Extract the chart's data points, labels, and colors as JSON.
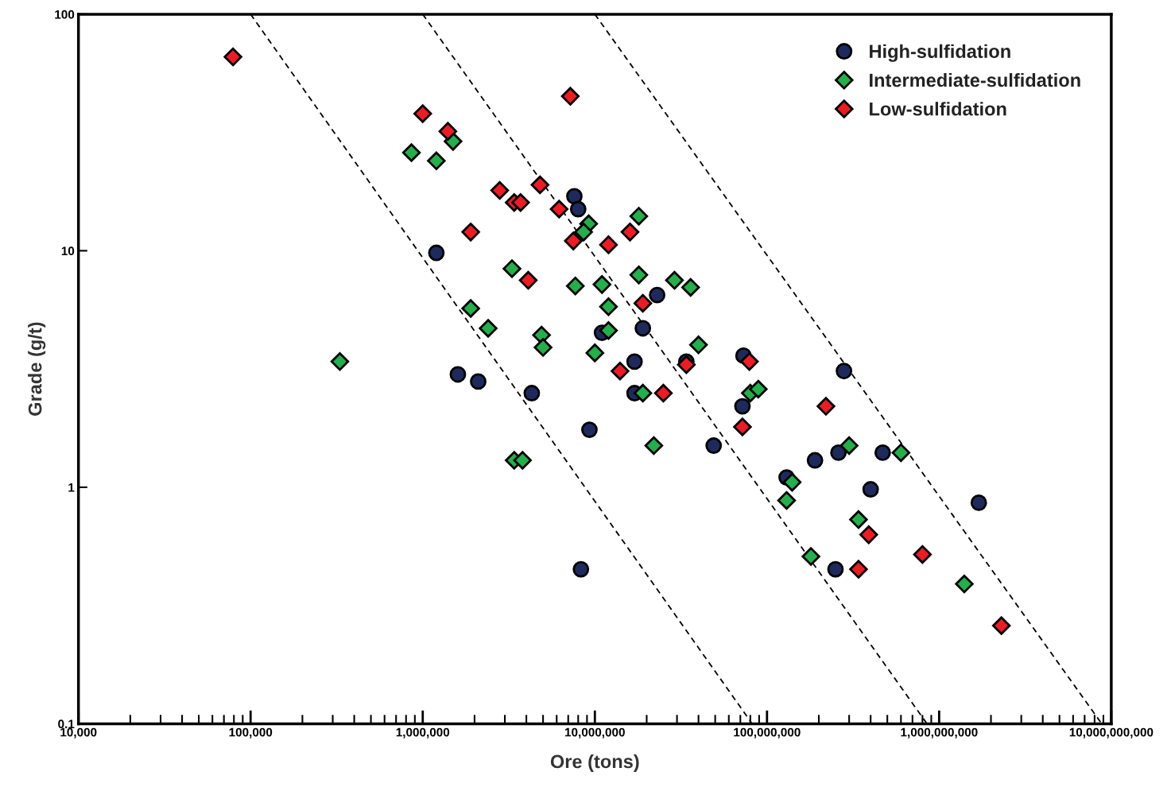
{
  "chart_data": {
    "type": "scatter",
    "xlabel": "Ore (tons)",
    "ylabel": "Grade (g/t)",
    "log": "xy",
    "grid": false,
    "legend": "top right",
    "xlim": [
      10000,
      10000000000
    ],
    "ylim": [
      0.1,
      100
    ],
    "xticks": [
      {
        "value": 10000,
        "label": "10,000"
      },
      {
        "value": 100000,
        "label": "100,000"
      },
      {
        "value": 1000000,
        "label": "1,000,000"
      },
      {
        "value": 10000000,
        "label": "10,000,000"
      },
      {
        "value": 100000000,
        "label": "100,000,000"
      },
      {
        "value": 1000000000,
        "label": "1,000,000,000"
      },
      {
        "value": 10000000000,
        "label": "10,000,000,000"
      }
    ],
    "yticks": [
      0.1,
      1,
      10,
      100
    ],
    "series": [
      {
        "type": "line",
        "color": "#000000",
        "line_style": "dashed",
        "marker": "none",
        "x": [
          100000,
          82000000
        ],
        "values": [
          100,
          0.1
        ]
      },
      {
        "type": "line",
        "color": "#000000",
        "line_style": "dashed",
        "marker": "none",
        "x": [
          1000000,
          850000000
        ],
        "values": [
          100,
          0.1
        ]
      },
      {
        "type": "line",
        "color": "#000000",
        "line_style": "dashed",
        "marker": "none",
        "x": [
          10000000,
          8800000000
        ],
        "values": [
          100,
          0.1
        ]
      },
      {
        "name": "High-sulfidation",
        "color": "#1f2a5c",
        "marker": "circle",
        "x": [
          1200000,
          1600000,
          2100000,
          4300000,
          7600000,
          8000000,
          8300000,
          9300000,
          11000000,
          17000000,
          17000000,
          19000000,
          23000000,
          34000000,
          49000000,
          73000000,
          72000000,
          130000000,
          190000000,
          260000000,
          250000000,
          280000000,
          400000000,
          470000000,
          1700000000
        ],
        "values": [
          9.8,
          3.0,
          2.8,
          2.5,
          17,
          15,
          0.45,
          1.75,
          4.5,
          3.4,
          2.5,
          4.7,
          6.5,
          3.4,
          1.5,
          3.6,
          2.2,
          1.1,
          1.3,
          1.4,
          0.45,
          3.1,
          0.98,
          1.4,
          0.86
        ]
      },
      {
        "name": "Intermediate-sulfidation",
        "color": "#22b04b",
        "marker": "diamond",
        "x": [
          330000,
          860000,
          1200000,
          1500000,
          1900000,
          2400000,
          3300000,
          3400000,
          3800000,
          4900000,
          5000000,
          7700000,
          9200000,
          8600000,
          11000000,
          12000000,
          12000000,
          10000000,
          18000000,
          18000000,
          29000000,
          36000000,
          40000000,
          19000000,
          80000000,
          89000000,
          22000000,
          300000000,
          600000000,
          140000000,
          130000000,
          340000000,
          180000000,
          1400000000
        ],
        "values": [
          3.4,
          26,
          24,
          29,
          5.7,
          4.7,
          8.4,
          1.3,
          1.3,
          4.4,
          3.9,
          7.1,
          13,
          12,
          7.2,
          5.8,
          4.6,
          3.7,
          7.9,
          14,
          7.5,
          7.0,
          4.0,
          2.5,
          2.5,
          2.6,
          1.5,
          1.5,
          1.4,
          1.05,
          0.88,
          0.73,
          0.51,
          0.39
        ]
      },
      {
        "name": "Low-sulfidation",
        "color": "#ed1c24",
        "marker": "diamond",
        "x": [
          79000,
          1000000,
          1400000,
          7200000,
          2800000,
          3400000,
          3700000,
          4800000,
          6200000,
          1900000,
          7500000,
          12000000,
          16000000,
          4100000,
          19000000,
          14000000,
          25000000,
          34000000,
          79000000,
          72000000,
          220000000,
          390000000,
          340000000,
          800000000,
          2300000000
        ],
        "values": [
          66,
          38,
          32,
          45,
          18,
          16,
          16,
          19,
          15,
          12,
          11,
          10.6,
          12,
          7.5,
          6.0,
          3.1,
          2.5,
          3.3,
          3.4,
          1.8,
          2.2,
          0.63,
          0.45,
          0.52,
          0.26
        ]
      }
    ]
  }
}
